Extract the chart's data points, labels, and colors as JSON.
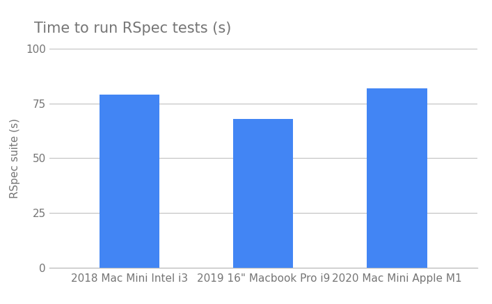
{
  "categories": [
    "2018 Mac Mini Intel i3",
    "2019 16\" Macbook Pro i9",
    "2020 Mac Mini Apple M1"
  ],
  "values": [
    79,
    68,
    82
  ],
  "bar_color": "#4285F4",
  "title": "Time to run RSpec tests (s)",
  "ylabel": "RSpec suite (s)",
  "ylim": [
    0,
    100
  ],
  "yticks": [
    0,
    25,
    50,
    75,
    100
  ],
  "title_fontsize": 15,
  "label_fontsize": 11,
  "tick_fontsize": 11,
  "title_color": "#757575",
  "tick_color": "#757575",
  "grid_color": "#c0c0c0",
  "background_color": "#ffffff",
  "bar_width": 0.45
}
